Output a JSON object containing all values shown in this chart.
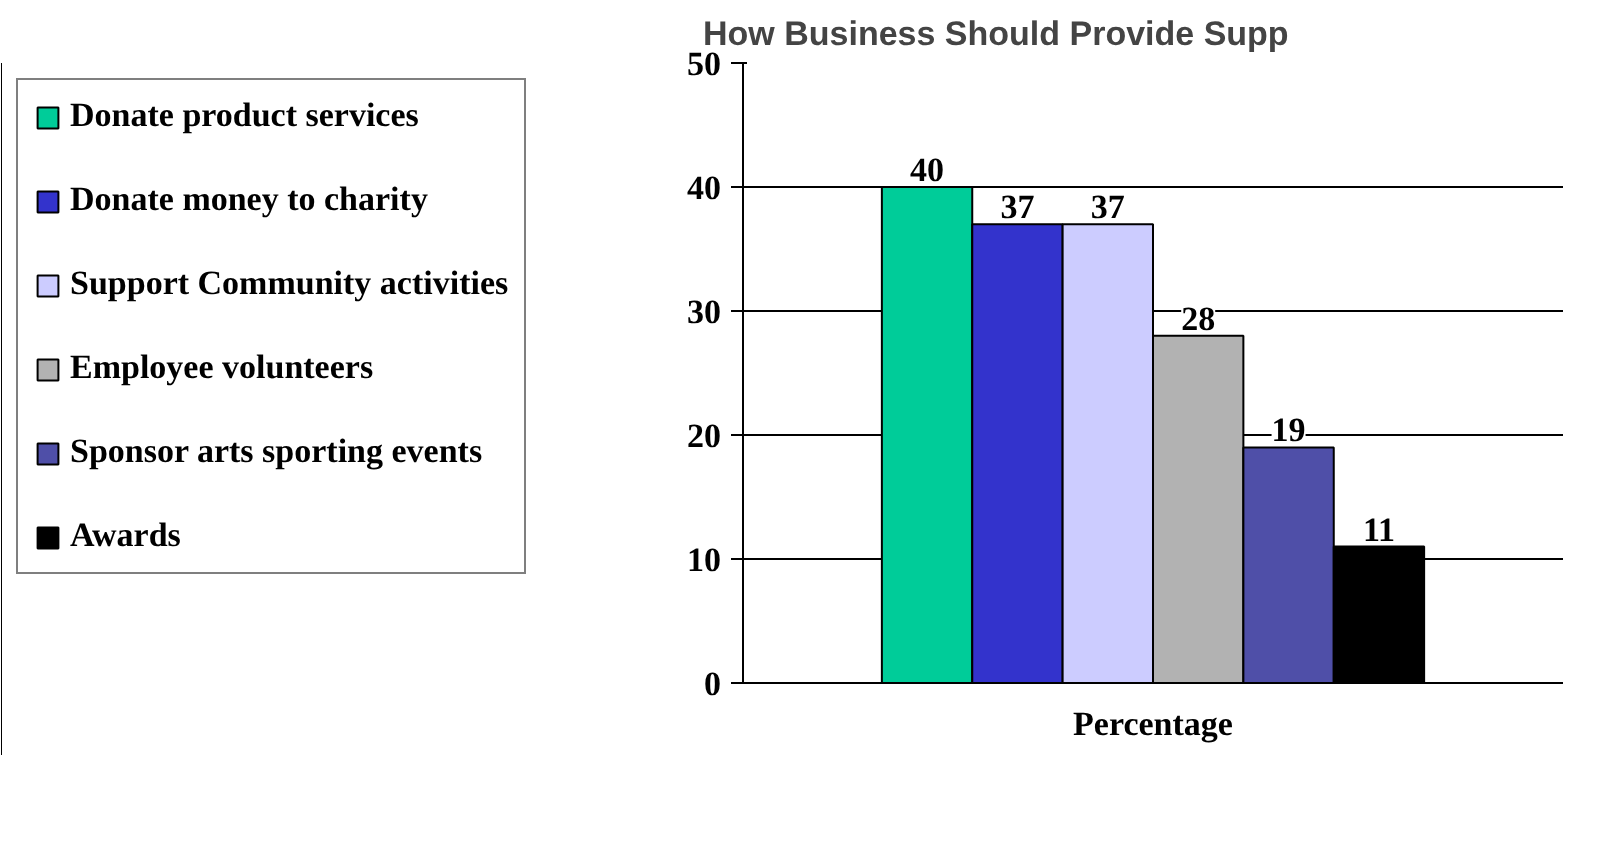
{
  "chart_data": {
    "type": "bar",
    "title": "How Business Should Provide Supp",
    "categories": [
      "Percentage"
    ],
    "series": [
      {
        "name": "Donate product services",
        "color": "#00cc99",
        "values": [
          40
        ]
      },
      {
        "name": "Donate money to charity",
        "color": "#3333cc",
        "values": [
          37
        ]
      },
      {
        "name": "Support Community activities",
        "color": "#ccccff",
        "values": [
          37
        ]
      },
      {
        "name": "Employee volunteers",
        "color": "#b2b2b2",
        "values": [
          28
        ]
      },
      {
        "name": "Sponsor arts sporting events",
        "color": "#4f4fa8",
        "values": [
          19
        ]
      },
      {
        "name": "Awards",
        "color": "#000000",
        "values": [
          11
        ]
      }
    ],
    "ylim": [
      0,
      50
    ],
    "yticks": [
      0,
      10,
      20,
      30,
      40,
      50
    ],
    "grid": "y",
    "legend": "left",
    "data_labels": true
  }
}
